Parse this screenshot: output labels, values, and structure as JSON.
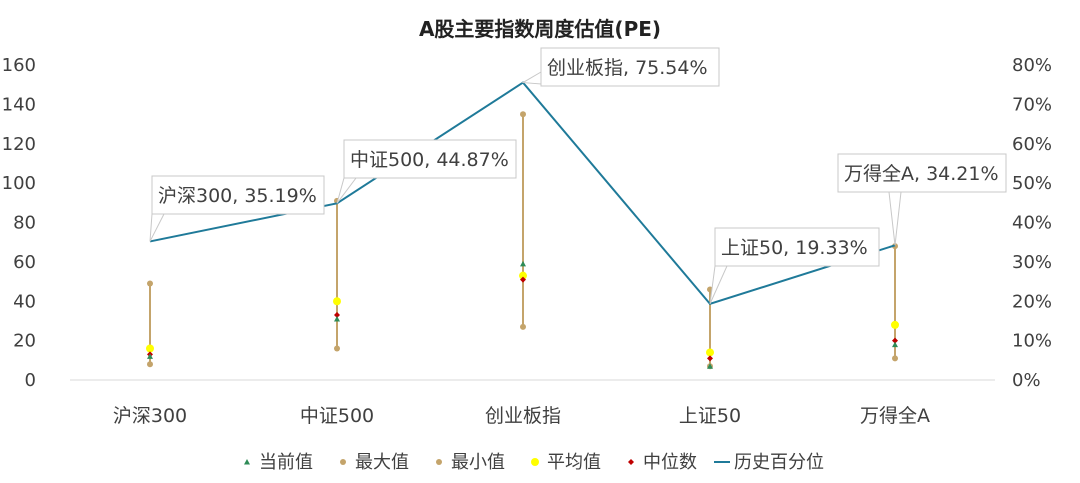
{
  "chart_data": {
    "type": "line",
    "title": "A股主要指数周度估值(PE)",
    "categories": [
      "沪深300",
      "中证500",
      "创业板指",
      "上证50",
      "万得全A"
    ],
    "y_left": {
      "ticks": [
        "0",
        "20",
        "40",
        "60",
        "80",
        "100",
        "120",
        "140",
        "160"
      ],
      "ylim": [
        0,
        160
      ]
    },
    "y_right": {
      "ticks": [
        "0%",
        "10%",
        "20%",
        "30%",
        "40%",
        "50%",
        "60%",
        "70%",
        "80%"
      ],
      "ylim": [
        0,
        80
      ]
    },
    "series": [
      {
        "name": "当前值",
        "axis": "left",
        "marker": "triangle",
        "color": "#2e8b57",
        "values": [
          12,
          31,
          59,
          7,
          18
        ]
      },
      {
        "name": "最大值",
        "axis": "left",
        "marker": "dot",
        "color": "#c4a46b",
        "values": [
          49,
          91,
          135,
          46,
          68
        ]
      },
      {
        "name": "最小值",
        "axis": "left",
        "marker": "dot",
        "color": "#c4a46b",
        "values": [
          8,
          16,
          27,
          7,
          11
        ]
      },
      {
        "name": "平均值",
        "axis": "left",
        "marker": "dot",
        "color": "#ffff00",
        "values": [
          16,
          40,
          53,
          14,
          28
        ]
      },
      {
        "name": "中位数",
        "axis": "left",
        "marker": "diamond",
        "color": "#c00000",
        "values": [
          13,
          33,
          51,
          11,
          20
        ]
      },
      {
        "name": "历史百分位",
        "axis": "right",
        "marker": "line",
        "color": "#1f7a99",
        "values": [
          35.19,
          44.87,
          75.54,
          19.33,
          34.21
        ]
      }
    ],
    "data_labels": [
      "沪深300, 35.19%",
      "中证500, 44.87%",
      "创业板指, 75.54%",
      "上证50, 19.33%",
      "万得全A, 34.21%"
    ],
    "grid": false,
    "legend_position": "bottom"
  }
}
